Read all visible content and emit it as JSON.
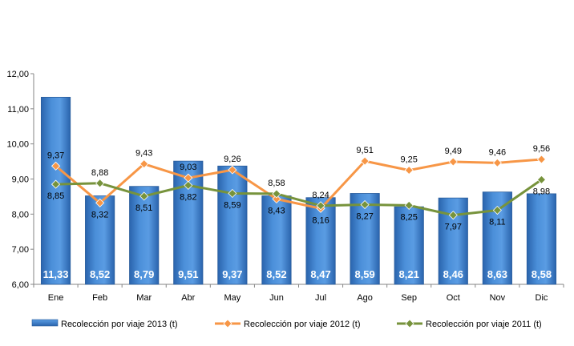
{
  "chart_data": {
    "type": "bar",
    "categories": [
      "Ene",
      "Feb",
      "Mar",
      "Abr",
      "May",
      "Jun",
      "Jul",
      "Ago",
      "Sep",
      "Oct",
      "Nov",
      "Dic"
    ],
    "ylim": [
      6,
      12
    ],
    "yticks": [
      "6,00",
      "7,00",
      "8,00",
      "9,00",
      "10,00",
      "11,00",
      "12,00"
    ],
    "grid": false,
    "legend_position": "bottom",
    "series": [
      {
        "name": "Recolección por viaje 2013 (t)",
        "kind": "bar",
        "color": "#3d7fc8",
        "values": [
          11.33,
          8.52,
          8.79,
          9.51,
          9.37,
          8.52,
          8.47,
          8.59,
          8.21,
          8.46,
          8.63,
          8.58
        ],
        "labels": [
          "11,33",
          "8,52",
          "8,79",
          "9,51",
          "9,37",
          "8,52",
          "8,47",
          "8,59",
          "8,21",
          "8,46",
          "8,63",
          "8,58"
        ]
      },
      {
        "name": "Recolección por viaje 2012 (t)",
        "kind": "line",
        "color": "#f79646",
        "values": [
          9.37,
          8.32,
          9.43,
          9.03,
          9.26,
          8.43,
          8.16,
          9.51,
          9.25,
          9.49,
          9.46,
          9.56
        ],
        "labels": [
          "9,37",
          "8,32",
          "9,43",
          "9,03",
          "9,26",
          "8,43",
          "8,16",
          "9,51",
          "9,25",
          "9,49",
          "9,46",
          "9,56"
        ]
      },
      {
        "name": "Recolección por viaje 2011 (t)",
        "kind": "line",
        "color": "#77933c",
        "values": [
          8.85,
          8.88,
          8.51,
          8.82,
          8.59,
          8.58,
          8.24,
          8.27,
          8.25,
          7.97,
          8.11,
          8.98
        ],
        "labels": [
          "8,85",
          "8,88",
          "8,51",
          "8,82",
          "8,59",
          "8,58",
          "8,24",
          "8,27",
          "8,25",
          "7,97",
          "8,11",
          "8,98"
        ]
      }
    ]
  }
}
